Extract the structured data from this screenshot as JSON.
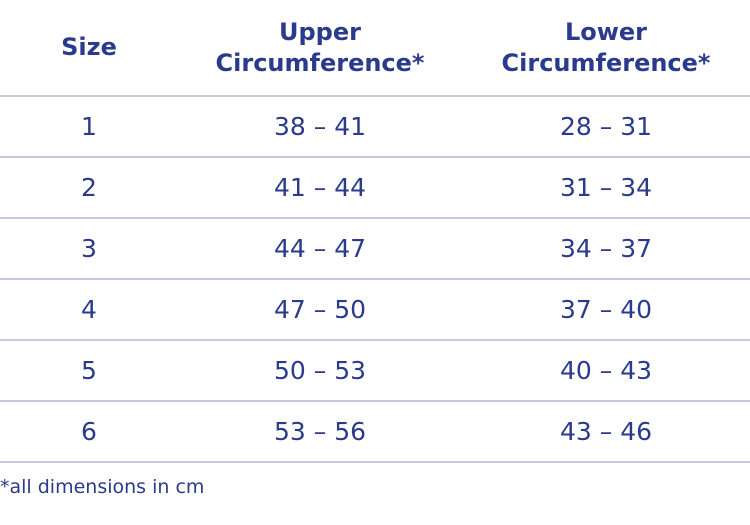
{
  "table": {
    "headers": {
      "size": "Size",
      "upper": [
        "Upper",
        "Circumference*"
      ],
      "lower": [
        "Lower",
        "Circumference*"
      ]
    },
    "rows": [
      {
        "size": "1",
        "upper": "38 – 41",
        "lower": "28 – 31"
      },
      {
        "size": "2",
        "upper": "41 – 44",
        "lower": "31 – 34"
      },
      {
        "size": "3",
        "upper": "44 – 47",
        "lower": "34 – 37"
      },
      {
        "size": "4",
        "upper": "47 – 50",
        "lower": "37 – 40"
      },
      {
        "size": "5",
        "upper": "50 – 53",
        "lower": "40 – 43"
      },
      {
        "size": "6",
        "upper": "53 – 56",
        "lower": "43 – 46"
      }
    ]
  },
  "footnote": "*all dimensions in cm",
  "colors": {
    "text": "#2a3a8c",
    "rule": "#c9c6de"
  }
}
